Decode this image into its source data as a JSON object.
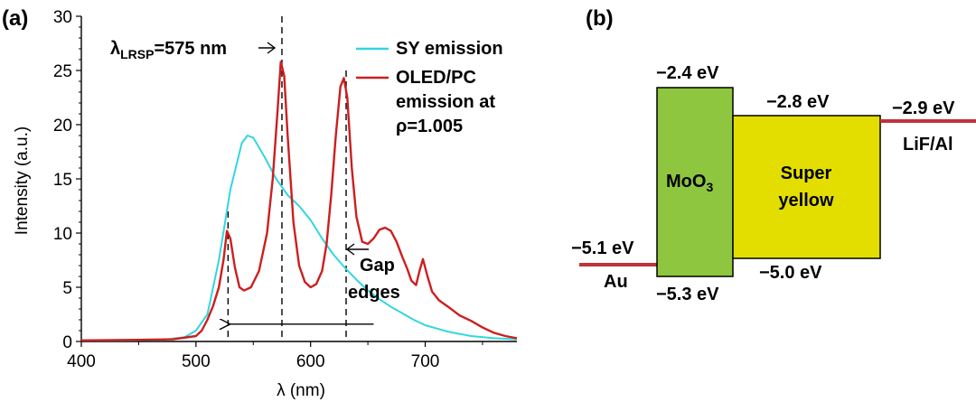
{
  "panel_a_label": "(a)",
  "panel_b_label": "(b)",
  "chart_data": {
    "type": "line",
    "xlabel": "λ (nm)",
    "ylabel": "Intensity (a.u.)",
    "xlim": [
      400,
      780
    ],
    "ylim": [
      0,
      30
    ],
    "xticks": [
      "400",
      "500",
      "600",
      "700"
    ],
    "yticks": [
      "0",
      "5",
      "10",
      "15",
      "20",
      "25",
      "30"
    ],
    "grid": false,
    "legend_position": "top-right",
    "series": [
      {
        "name": "SY emission",
        "color": "#33d6e0",
        "x": [
          400,
          440,
          470,
          490,
          500,
          510,
          520,
          530,
          540,
          545,
          550,
          560,
          570,
          580,
          590,
          600,
          610,
          620,
          630,
          640,
          650,
          660,
          670,
          680,
          690,
          700,
          720,
          740,
          760,
          780
        ],
        "y": [
          0.1,
          0.1,
          0.15,
          0.4,
          1.0,
          2.5,
          7.5,
          14.0,
          18.3,
          19.0,
          18.8,
          17.0,
          15.0,
          13.5,
          12.5,
          11.2,
          9.5,
          8.0,
          6.8,
          5.7,
          4.7,
          3.9,
          3.2,
          2.6,
          2.0,
          1.5,
          0.9,
          0.5,
          0.3,
          0.2
        ]
      },
      {
        "name": "OLED/PC emission at ρ=1.005",
        "color": "#cc1f1f",
        "x": [
          400,
          450,
          480,
          500,
          505,
          510,
          515,
          520,
          524,
          527,
          530,
          534,
          538,
          542,
          548,
          555,
          562,
          567,
          571,
          574,
          577,
          580,
          585,
          590,
          595,
          600,
          605,
          610,
          614,
          618,
          622,
          626,
          629,
          632,
          636,
          640,
          645,
          650,
          655,
          660,
          665,
          670,
          675,
          680,
          684,
          688,
          692,
          695,
          698,
          702,
          706,
          712,
          720,
          730,
          740,
          750,
          760,
          770,
          780
        ],
        "y": [
          0.1,
          0.15,
          0.2,
          0.5,
          1.0,
          2.0,
          3.3,
          5.0,
          7.5,
          10.2,
          9.5,
          6.8,
          5.0,
          4.7,
          5.0,
          6.5,
          10.0,
          15.0,
          21.0,
          25.8,
          24.5,
          19.0,
          11.0,
          7.0,
          5.5,
          5.0,
          5.3,
          6.5,
          9.0,
          13.5,
          19.0,
          23.5,
          24.3,
          22.5,
          16.0,
          11.5,
          9.2,
          9.0,
          9.5,
          10.3,
          10.5,
          10.2,
          9.2,
          7.8,
          6.8,
          5.6,
          5.2,
          6.5,
          7.6,
          6.0,
          4.6,
          3.8,
          3.2,
          2.4,
          1.9,
          1.3,
          0.8,
          0.5,
          0.3
        ]
      }
    ],
    "legend": [
      {
        "label": "SY emission",
        "lines": [
          "SY emission"
        ],
        "color": "#33d6e0"
      },
      {
        "label": "OLED/PC emission at ρ=1.005",
        "lines": [
          "OLED/PC",
          "emission at",
          "ρ=1.005"
        ],
        "color": "#cc1f1f"
      }
    ],
    "vlines": [
      {
        "x": 528,
        "y_top": 12
      },
      {
        "x": 575,
        "y_top": 30
      },
      {
        "x": 631,
        "y_top": 25
      }
    ],
    "gap_arrow": {
      "from_x": 655,
      "to_x": 530,
      "y": 1.6
    },
    "lambda_label": {
      "prefix": "λ",
      "subscript": "LRSP",
      "value": "=575 nm"
    },
    "gap_edges_label": [
      "Gap",
      "edges"
    ]
  },
  "energy_diagram": {
    "au": {
      "name": "Au",
      "level": "−5.1 eV",
      "color": "#c0333a"
    },
    "moo3": {
      "name": "MoO",
      "subscript": "3",
      "lumo": "−2.4 eV",
      "homo": "−5.3 eV",
      "color": "#8ec63f"
    },
    "super_yellow": {
      "name_lines": [
        "Super",
        "yellow"
      ],
      "lumo": "−2.8 eV",
      "homo": "−5.0 eV",
      "color": "#e3de00"
    },
    "lif_al": {
      "name": "LiF/Al",
      "level": "−2.9 eV",
      "color": "#c0333a"
    }
  }
}
